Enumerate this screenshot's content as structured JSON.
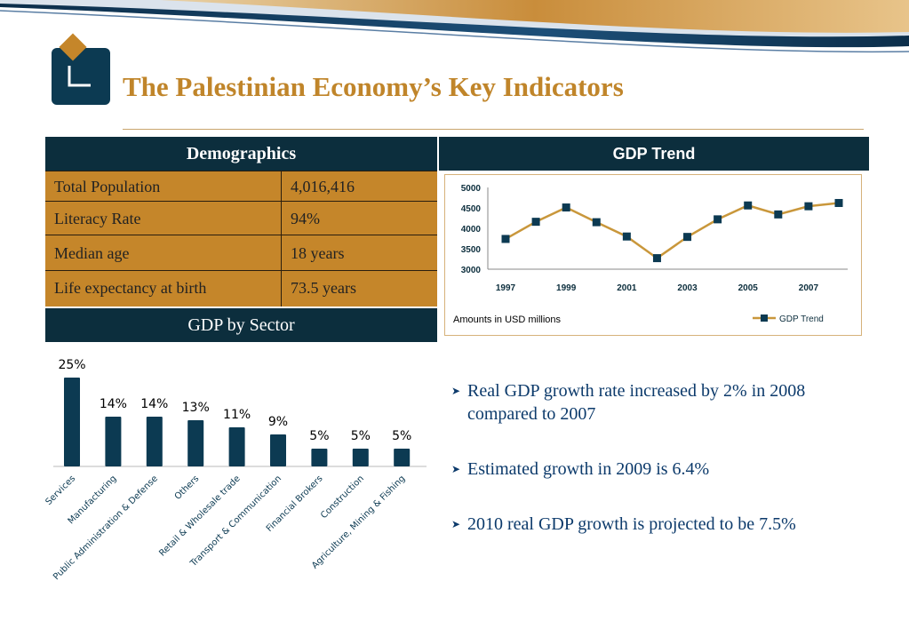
{
  "title": "The Palestinian Economy’s Key Indicators",
  "demographics": {
    "header": "Demographics",
    "rows": [
      {
        "label": "Total Population",
        "value": "4,016,416"
      },
      {
        "label": "Literacy Rate",
        "value": "94%"
      },
      {
        "label": "Median age",
        "value": "18 years"
      },
      {
        "label": "Life expectancy at birth",
        "value": "73.5 years"
      }
    ]
  },
  "sector_header": "GDP by Sector",
  "gdp_trend": {
    "header": "GDP Trend",
    "note": "Amounts in USD millions"
  },
  "bullets": [
    "Real GDP growth rate increased by 2% in 2008 compared to 2007",
    "Estimated growth in 2009 is 6.4%",
    "2010 real GDP growth is projected to be 7.5%"
  ],
  "colors": {
    "navy": "#0c2e3d",
    "gold": "#c5862a",
    "title": "#c0852a",
    "line": "#c9973b",
    "bullet_text": "#0c3a6b"
  },
  "chart_data": [
    {
      "type": "line",
      "x": [
        1997,
        1998,
        1999,
        2000,
        2001,
        2002,
        2003,
        2004,
        2005,
        2006,
        2007,
        2008
      ],
      "x_tick_labels": [
        "1997",
        "1999",
        "2001",
        "2003",
        "2005",
        "2007"
      ],
      "series": [
        {
          "name": "GDP Trend",
          "values": [
            3740,
            4160,
            4510,
            4150,
            3800,
            3270,
            3790,
            4220,
            4560,
            4340,
            4540,
            4620
          ]
        }
      ],
      "ylim": [
        3000,
        5000
      ],
      "yticks": [
        3000,
        3500,
        4000,
        4500,
        5000
      ],
      "legend": "bottom-right",
      "grid": false
    },
    {
      "type": "bar",
      "categories": [
        "Services",
        "Manufacturing",
        "Public Administration & Defense",
        "Others",
        "Retail & Wholesale trade",
        "Transport & Communication",
        "Financial Brokers",
        "Construction",
        "Agriculture, Mining & Fishing"
      ],
      "values": [
        25,
        14,
        14,
        13,
        11,
        9,
        5,
        5,
        5
      ],
      "value_labels": [
        "25%",
        "14%",
        "14%",
        "13%",
        "11%",
        "9%",
        "5%",
        "5%",
        "5%"
      ],
      "grid": false
    }
  ]
}
